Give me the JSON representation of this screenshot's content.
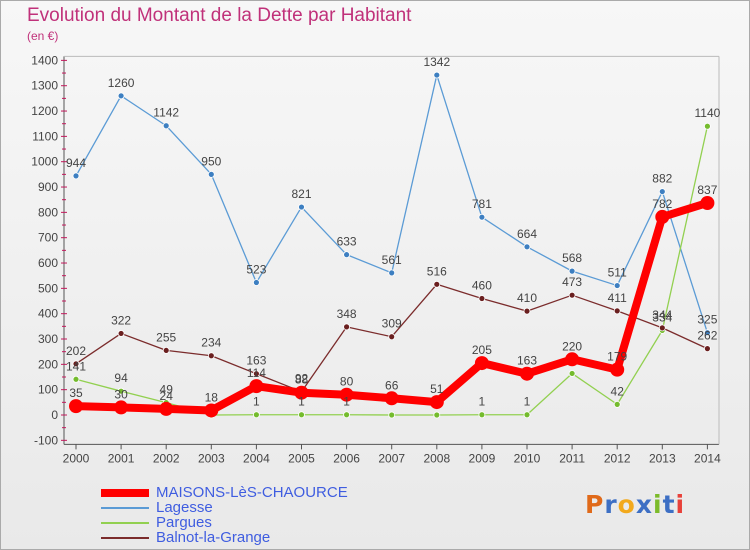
{
  "chart_data": {
    "type": "line",
    "title": "Evolution du Montant de la Dette par Habitant",
    "subtitle": "(en €)",
    "categories": [
      "2000",
      "2001",
      "2002",
      "2003",
      "2004",
      "2005",
      "2006",
      "2007",
      "2008",
      "2009",
      "2010",
      "2011",
      "2012",
      "2013",
      "2014"
    ],
    "ylim": [
      -100,
      1400
    ],
    "yticks": [
      -100,
      0,
      100,
      200,
      300,
      400,
      500,
      600,
      700,
      800,
      900,
      1000,
      1100,
      1200,
      1300,
      1400
    ],
    "grid": false,
    "legend_position": "bottom-left",
    "series": [
      {
        "name": "Lagesse",
        "color": "#5b9bd5",
        "marker": "#3d7fc1",
        "values": [
          944,
          1260,
          1142,
          950,
          523,
          821,
          633,
          561,
          1342,
          781,
          664,
          568,
          511,
          882,
          325
        ]
      },
      {
        "name": "Pargues",
        "color": "#92d050",
        "marker": "#74bb2d",
        "values": [
          141,
          94,
          49,
          0,
          1,
          1,
          1,
          0,
          0,
          1,
          1,
          164,
          42,
          334,
          1140
        ]
      },
      {
        "name": "Balnot-la-Grange",
        "color": "#7b2c2c",
        "marker": "#6a1f1f",
        "values": [
          202,
          322,
          255,
          234,
          163,
          92,
          348,
          309,
          516,
          460,
          410,
          473,
          411,
          344,
          262
        ]
      },
      {
        "name": "MAISONS-LèS-CHAOURCE",
        "color": "#ff0000",
        "marker": "#ff0000",
        "values": [
          35,
          30,
          24,
          18,
          114,
          88,
          80,
          66,
          51,
          205,
          163,
          220,
          179,
          782,
          837
        ]
      }
    ],
    "point_labels": [
      [
        "944",
        "1260",
        "1142",
        "950",
        "523",
        "821",
        "633",
        "561",
        "1342",
        "781",
        "664",
        "568",
        "511",
        "882",
        "325"
      ],
      [
        "141",
        "94",
        "49",
        "",
        "1",
        "1",
        "1",
        "",
        "",
        "1",
        "1",
        "",
        "42",
        "334",
        "1140"
      ],
      [
        "202",
        "322",
        "255",
        "234",
        "163",
        "92",
        "348",
        "309",
        "516",
        "460",
        "410",
        "473",
        "411",
        "344",
        "262"
      ],
      [
        "35",
        "30",
        "24",
        "18",
        "114",
        "88",
        "80",
        "66",
        "51",
        "205",
        "163",
        "220",
        "179",
        "782",
        "837"
      ]
    ]
  },
  "legend": {
    "items": [
      {
        "label": "MAISONS-LèS-CHAOURCE",
        "color": "#ff0000"
      },
      {
        "label": "Lagesse",
        "color": "#5b9bd5"
      },
      {
        "label": "Pargues",
        "color": "#92d050"
      },
      {
        "label": "Balnot-la-Grange",
        "color": "#7b2c2c"
      }
    ]
  },
  "brand": {
    "letters": [
      "P",
      "r",
      "o",
      "x",
      "i",
      "t",
      "i"
    ]
  }
}
